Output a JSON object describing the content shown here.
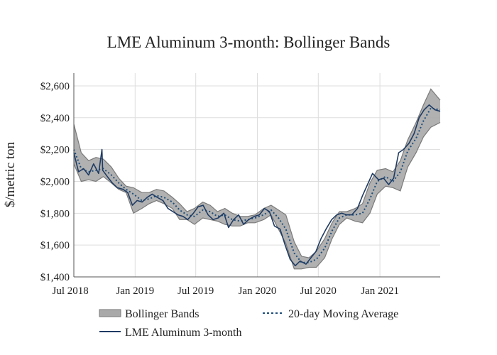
{
  "chart_data": {
    "type": "line",
    "title": "LME Aluminum 3-month: Bollinger Bands",
    "xlabel": "",
    "ylabel": "$/metric ton",
    "x_ticks": [
      "Jul 2018",
      "Jan 2019",
      "Jul 2019",
      "Jan 2020",
      "Jul 2020",
      "Jan 2021"
    ],
    "y_ticks": [
      "$1,400",
      "$1,600",
      "$1,800",
      "$2,000",
      "$2,200",
      "$2,400",
      "$2,600"
    ],
    "xlim": [
      "2018-07-02",
      "2021-06-30"
    ],
    "ylim": [
      1400,
      2680
    ],
    "grid": true,
    "legend_position": "bottom",
    "colors": {
      "price": "#1f3b63",
      "moving_average": "#1f4e7a",
      "band_fill": "#a9a9a9",
      "band_edge": "#7a7a7a",
      "grid": "#dddddd",
      "axis": "#555555"
    },
    "series": [
      {
        "name": "LME Aluminum 3-month",
        "style": "solid",
        "x": [
          "2018-07-02",
          "2018-07-16",
          "2018-07-31",
          "2018-08-15",
          "2018-08-30",
          "2018-09-14",
          "2018-09-24",
          "2018-09-26",
          "2018-10-10",
          "2018-10-25",
          "2018-11-09",
          "2018-11-26",
          "2018-12-10",
          "2018-12-24",
          "2019-01-07",
          "2019-01-22",
          "2019-02-06",
          "2019-02-21",
          "2019-03-08",
          "2019-03-25",
          "2019-04-09",
          "2019-04-24",
          "2019-05-09",
          "2019-05-24",
          "2019-06-07",
          "2019-06-24",
          "2019-07-08",
          "2019-07-23",
          "2019-08-07",
          "2019-08-22",
          "2019-09-06",
          "2019-09-23",
          "2019-10-07",
          "2019-10-22",
          "2019-11-06",
          "2019-11-21",
          "2019-12-06",
          "2019-12-23",
          "2020-01-07",
          "2020-01-22",
          "2020-02-06",
          "2020-02-21",
          "2020-03-09",
          "2020-03-24",
          "2020-04-08",
          "2020-04-23",
          "2020-05-08",
          "2020-05-25",
          "2020-06-09",
          "2020-06-24",
          "2020-07-09",
          "2020-07-24",
          "2020-08-10",
          "2020-08-25",
          "2020-09-09",
          "2020-09-24",
          "2020-10-09",
          "2020-10-26",
          "2020-11-10",
          "2020-11-25",
          "2020-12-10",
          "2020-12-28",
          "2021-01-12",
          "2021-01-27",
          "2021-02-11",
          "2021-02-26",
          "2021-03-12",
          "2021-03-29",
          "2021-04-13",
          "2021-04-28",
          "2021-05-13",
          "2021-05-28",
          "2021-06-14",
          "2021-06-30"
        ],
        "values": [
          2180,
          2060,
          2080,
          2040,
          2110,
          2050,
          2200,
          2070,
          2030,
          1990,
          1960,
          1950,
          1930,
          1850,
          1880,
          1870,
          1900,
          1920,
          1900,
          1880,
          1830,
          1810,
          1790,
          1780,
          1760,
          1800,
          1840,
          1850,
          1790,
          1760,
          1770,
          1800,
          1710,
          1760,
          1790,
          1730,
          1760,
          1780,
          1790,
          1830,
          1810,
          1720,
          1700,
          1600,
          1510,
          1470,
          1500,
          1480,
          1520,
          1560,
          1640,
          1700,
          1760,
          1790,
          1800,
          1790,
          1790,
          1830,
          1910,
          1980,
          2050,
          2010,
          2020,
          1980,
          2020,
          2180,
          2200,
          2240,
          2300,
          2400,
          2450,
          2480,
          2450,
          2440
        ]
      },
      {
        "name": "20-day Moving Average",
        "style": "dotted",
        "x": [
          "2018-07-02",
          "2018-07-24",
          "2018-08-15",
          "2018-09-06",
          "2018-09-28",
          "2018-10-22",
          "2018-11-13",
          "2018-12-05",
          "2018-12-27",
          "2019-01-21",
          "2019-02-12",
          "2019-03-06",
          "2019-03-28",
          "2019-04-22",
          "2019-05-14",
          "2019-06-05",
          "2019-06-27",
          "2019-07-22",
          "2019-08-13",
          "2019-09-04",
          "2019-09-26",
          "2019-10-18",
          "2019-11-11",
          "2019-12-03",
          "2019-12-25",
          "2020-01-20",
          "2020-02-11",
          "2020-03-04",
          "2020-03-26",
          "2020-04-20",
          "2020-05-12",
          "2020-06-03",
          "2020-06-25",
          "2020-07-20",
          "2020-08-11",
          "2020-09-02",
          "2020-09-24",
          "2020-10-19",
          "2020-11-10",
          "2020-12-02",
          "2020-12-24",
          "2021-01-18",
          "2021-02-09",
          "2021-03-03",
          "2021-03-25",
          "2021-04-19",
          "2021-05-11",
          "2021-06-02",
          "2021-06-30"
        ],
        "values": [
          2200,
          2080,
          2060,
          2070,
          2080,
          2040,
          1990,
          1950,
          1920,
          1880,
          1890,
          1910,
          1900,
          1870,
          1820,
          1790,
          1780,
          1820,
          1810,
          1780,
          1790,
          1760,
          1750,
          1760,
          1770,
          1790,
          1820,
          1770,
          1700,
          1550,
          1490,
          1490,
          1510,
          1580,
          1690,
          1770,
          1790,
          1790,
          1800,
          1890,
          2000,
          2030,
          2000,
          2060,
          2190,
          2270,
          2380,
          2460,
          2450
        ]
      },
      {
        "name": "Bollinger Bands",
        "style": "band",
        "x": [
          "2018-07-02",
          "2018-07-24",
          "2018-08-15",
          "2018-09-06",
          "2018-09-28",
          "2018-10-22",
          "2018-11-13",
          "2018-12-05",
          "2018-12-27",
          "2019-01-21",
          "2019-02-12",
          "2019-03-06",
          "2019-03-28",
          "2019-04-22",
          "2019-05-14",
          "2019-06-05",
          "2019-06-27",
          "2019-07-22",
          "2019-08-13",
          "2019-09-04",
          "2019-09-26",
          "2019-10-18",
          "2019-11-11",
          "2019-12-03",
          "2019-12-25",
          "2020-01-20",
          "2020-02-11",
          "2020-03-04",
          "2020-03-26",
          "2020-04-20",
          "2020-05-12",
          "2020-06-03",
          "2020-06-25",
          "2020-07-20",
          "2020-08-11",
          "2020-09-02",
          "2020-09-24",
          "2020-10-19",
          "2020-11-10",
          "2020-12-02",
          "2020-12-24",
          "2021-01-18",
          "2021-02-09",
          "2021-03-03",
          "2021-03-25",
          "2021-04-19",
          "2021-05-11",
          "2021-06-02",
          "2021-06-30"
        ],
        "upper": [
          2360,
          2180,
          2130,
          2150,
          2140,
          2090,
          2020,
          1970,
          1960,
          1930,
          1930,
          1950,
          1940,
          1900,
          1860,
          1810,
          1830,
          1870,
          1850,
          1810,
          1830,
          1800,
          1780,
          1780,
          1790,
          1830,
          1850,
          1820,
          1790,
          1620,
          1530,
          1520,
          1560,
          1640,
          1740,
          1810,
          1810,
          1830,
          1860,
          1990,
          2070,
          2080,
          2060,
          2130,
          2260,
          2370,
          2480,
          2580,
          2510
        ]
      },
      {
        "name": "",
        "style": "band-lower",
        "x": [
          "2018-07-02",
          "2018-07-24",
          "2018-08-15",
          "2018-09-06",
          "2018-09-28",
          "2018-10-22",
          "2018-11-13",
          "2018-12-05",
          "2018-12-27",
          "2019-01-21",
          "2019-02-12",
          "2019-03-06",
          "2019-03-28",
          "2019-04-22",
          "2019-05-14",
          "2019-06-05",
          "2019-06-27",
          "2019-07-22",
          "2019-08-13",
          "2019-09-04",
          "2019-09-26",
          "2019-10-18",
          "2019-11-11",
          "2019-12-03",
          "2019-12-25",
          "2020-01-20",
          "2020-02-11",
          "2020-03-04",
          "2020-03-26",
          "2020-04-20",
          "2020-05-12",
          "2020-06-03",
          "2020-06-25",
          "2020-07-20",
          "2020-08-11",
          "2020-09-02",
          "2020-09-24",
          "2020-10-19",
          "2020-11-10",
          "2020-12-02",
          "2020-12-24",
          "2021-01-18",
          "2021-02-09",
          "2021-03-03",
          "2021-03-25",
          "2021-04-19",
          "2021-05-11",
          "2021-06-02",
          "2021-06-30"
        ],
        "lower": [
          2110,
          2000,
          2010,
          2000,
          2030,
          1990,
          1950,
          1930,
          1800,
          1830,
          1860,
          1880,
          1860,
          1830,
          1760,
          1760,
          1730,
          1770,
          1760,
          1750,
          1730,
          1720,
          1720,
          1740,
          1740,
          1760,
          1790,
          1700,
          1610,
          1450,
          1450,
          1460,
          1460,
          1520,
          1640,
          1730,
          1770,
          1750,
          1740,
          1800,
          1920,
          1970,
          1960,
          1940,
          2090,
          2180,
          2280,
          2340,
          2370
        ]
      }
    ],
    "legend": [
      "Bollinger Bands",
      "20-day Moving Average",
      "LME Aluminum 3-month"
    ]
  }
}
